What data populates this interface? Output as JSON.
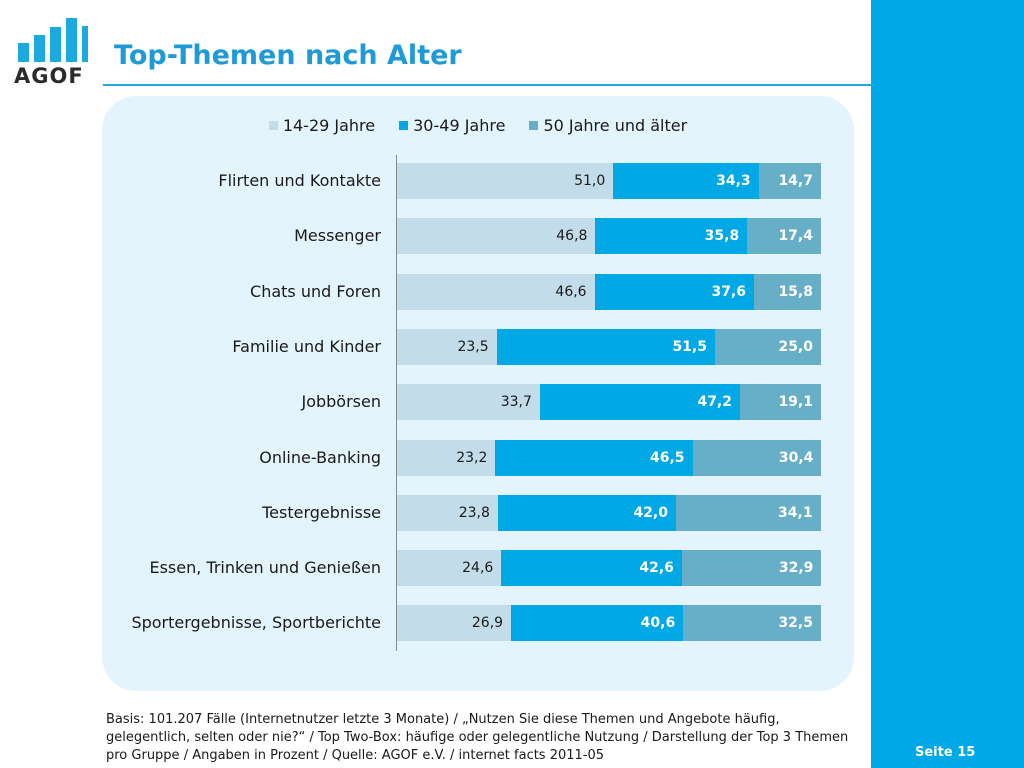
{
  "page": {
    "title": "Top-Themen nach Alter",
    "footnote": "Basis: 101.207 Fälle (Internetnutzer letzte 3 Monate) / „Nutzen Sie diese Themen und Angebote häufig, gelegentlich, selten oder nie?“ / Top Two-Box: häufige oder gelegentliche Nutzung / Darstellung der Top 3 Themen pro Gruppe / Angaben in Prozent / Quelle: AGOF e.V. / internet facts 2011-05",
    "page_number": "Seite 15"
  },
  "logo": {
    "text": "AGOF"
  },
  "colors": {
    "accent": "#00a8e6",
    "title": "#1f9ad6",
    "panel": "#e4f4fc",
    "series": [
      "#c2dce9",
      "#00a8e6",
      "#67aec7"
    ]
  },
  "chart_data": {
    "type": "bar",
    "orientation": "horizontal",
    "stacked": true,
    "categories": [
      "Flirten und Kontakte",
      "Messenger",
      "Chats und Foren",
      "Familie und Kinder",
      "Jobbörsen",
      "Online-Banking",
      "Testergebnisse",
      "Essen, Trinken und Genießen",
      "Sportergebnisse, Sportberichte"
    ],
    "series": [
      {
        "name": "14-29 Jahre",
        "values": [
          51.0,
          46.8,
          46.6,
          23.5,
          33.7,
          23.2,
          23.8,
          24.6,
          26.9
        ],
        "labels": [
          "51,0",
          "46,8",
          "46,6",
          "23,5",
          "33,7",
          "23,2",
          "23,8",
          "24,6",
          "26,9"
        ]
      },
      {
        "name": "30-49 Jahre",
        "values": [
          34.3,
          35.8,
          37.6,
          51.5,
          47.2,
          46.5,
          42.0,
          42.6,
          40.6
        ],
        "labels": [
          "34,3",
          "35,8",
          "37,6",
          "51,5",
          "47,2",
          "46,5",
          "42,0",
          "42,6",
          "40,6"
        ]
      },
      {
        "name": "50 Jahre und älter",
        "values": [
          14.7,
          17.4,
          15.8,
          25.0,
          19.1,
          30.4,
          34.1,
          32.9,
          32.5
        ],
        "labels": [
          "14,7",
          "17,4",
          "15,8",
          "25,0",
          "19,1",
          "30,4",
          "34,1",
          "32,9",
          "32,5"
        ]
      }
    ],
    "xlim": [
      0,
      100
    ],
    "legend_position": "top-center",
    "grid": false
  }
}
